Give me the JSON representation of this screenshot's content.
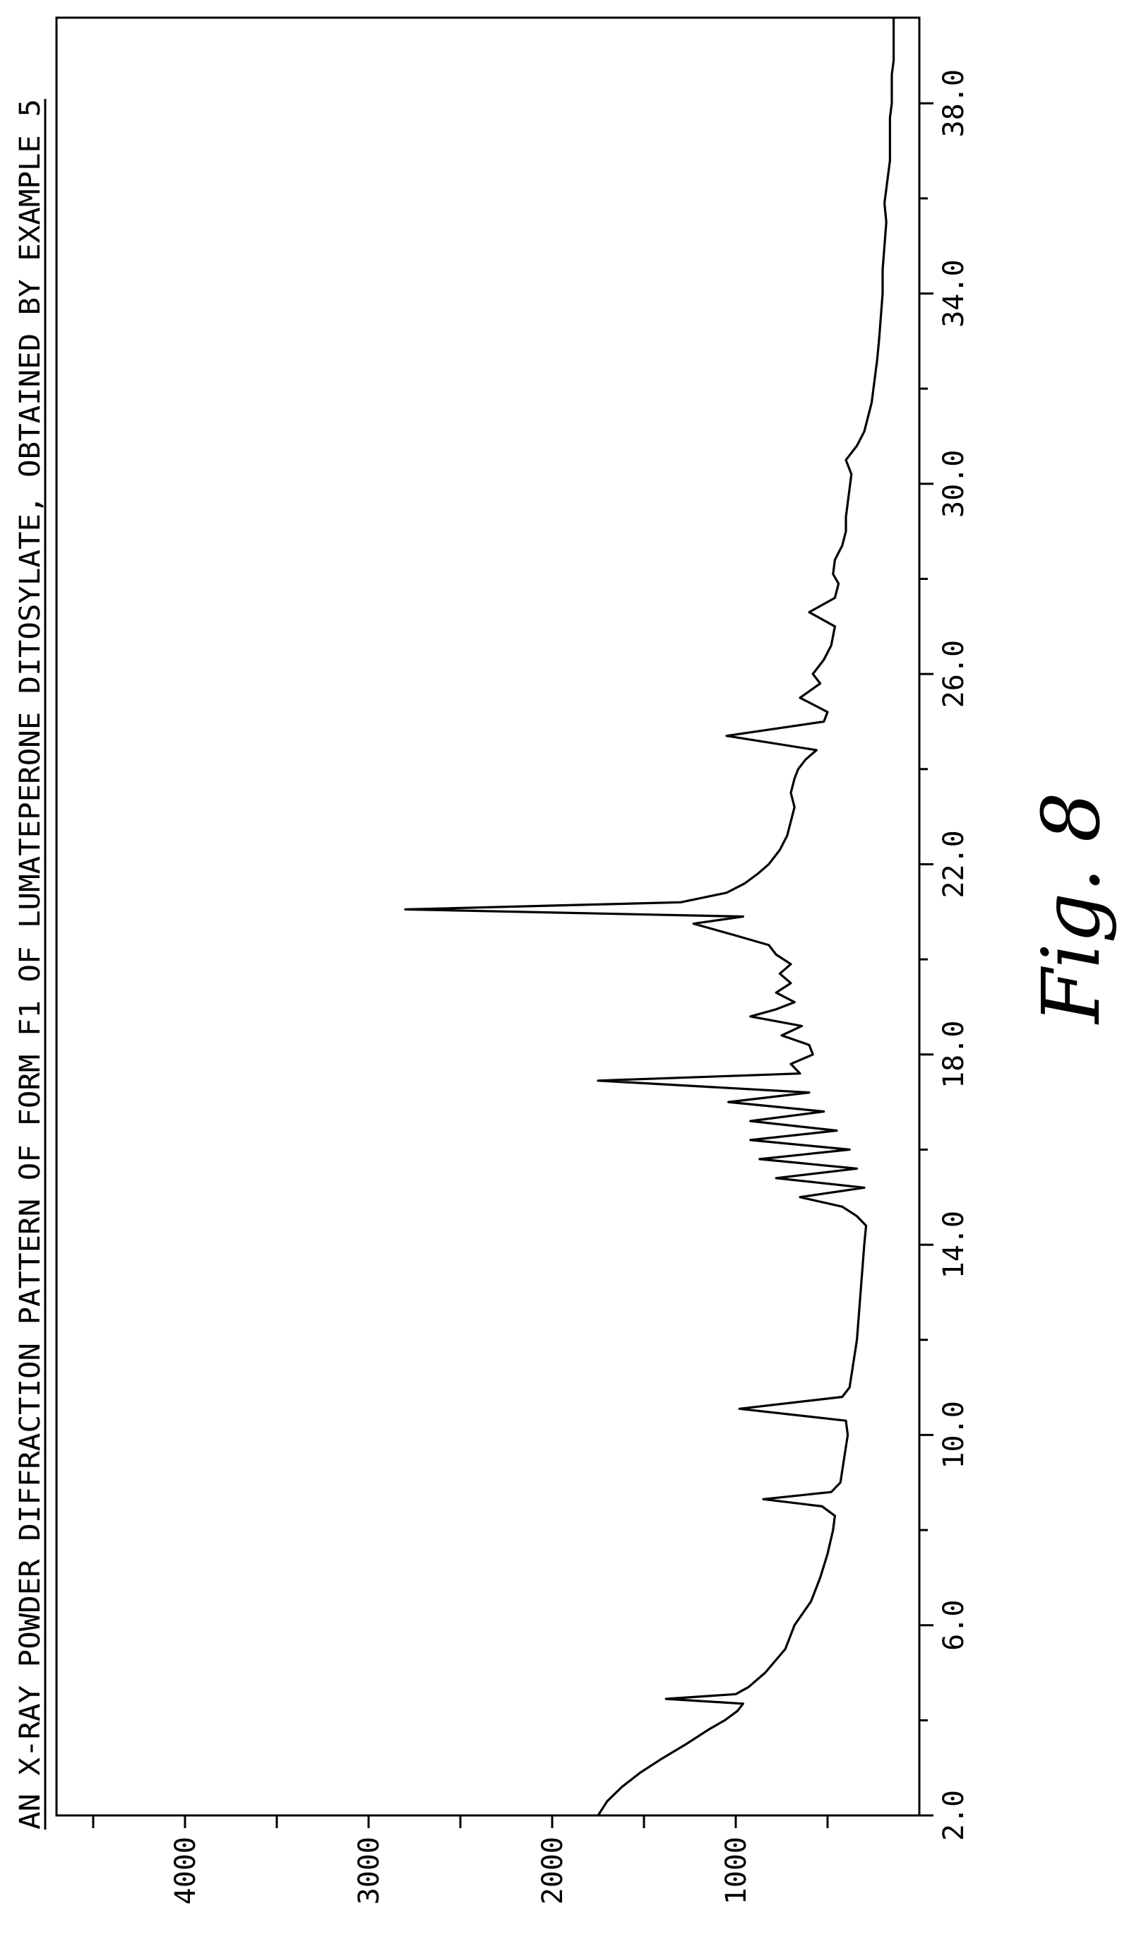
{
  "figure_label": "Fig. 8",
  "chart_data": {
    "type": "line",
    "title": "AN X-RAY POWDER DIFFRACTION PATTERN OF FORM F1 OF LUMATEPERONE DITOSYLATE, OBTAINED BY EXAMPLE 5",
    "xlabel": "",
    "ylabel": "",
    "xlim": [
      2.0,
      39.8
    ],
    "ylim": [
      0,
      4700
    ],
    "x_ticks": [
      "2.0",
      "6.0",
      "10.0",
      "14.0",
      "18.0",
      "22.0",
      "26.0",
      "30.0",
      "34.0",
      "38.0"
    ],
    "y_ticks": [
      "1000",
      "2000",
      "3000",
      "4000"
    ],
    "grid": false,
    "orientation": "rotated 90 degrees counter-clockwise",
    "series": [
      {
        "color": "#000000",
        "x": [
          2.0,
          2.3,
          2.6,
          2.9,
          3.2,
          3.5,
          3.8,
          4.0,
          4.2,
          4.35,
          4.45,
          4.55,
          4.7,
          5.0,
          5.5,
          6.0,
          6.5,
          7.0,
          7.5,
          8.0,
          8.3,
          8.5,
          8.65,
          8.8,
          9.0,
          9.5,
          10.0,
          10.3,
          10.55,
          10.8,
          11.0,
          11.5,
          12.0,
          12.5,
          13.0,
          13.5,
          14.0,
          14.4,
          14.6,
          14.8,
          15.0,
          15.2,
          15.4,
          15.6,
          15.8,
          16.0,
          16.2,
          16.4,
          16.6,
          16.8,
          17.0,
          17.2,
          17.45,
          17.6,
          17.8,
          18.0,
          18.2,
          18.4,
          18.6,
          18.8,
          18.95,
          19.1,
          19.3,
          19.5,
          19.7,
          19.9,
          20.1,
          20.3,
          20.5,
          20.75,
          20.9,
          21.05,
          21.2,
          21.4,
          21.6,
          21.8,
          22.0,
          22.3,
          22.6,
          22.9,
          23.2,
          23.5,
          23.8,
          24.0,
          24.2,
          24.4,
          24.7,
          25.0,
          25.2,
          25.5,
          25.8,
          26.0,
          26.3,
          26.6,
          27.0,
          27.3,
          27.6,
          27.9,
          28.1,
          28.4,
          28.7,
          29.0,
          29.3,
          29.6,
          29.9,
          30.2,
          30.5,
          30.8,
          31.1,
          31.4,
          31.7,
          32.0,
          32.3,
          32.6,
          33.0,
          33.5,
          34.0,
          34.5,
          35.0,
          35.5,
          35.9,
          36.2,
          36.5,
          36.8,
          37.1,
          37.4,
          37.7,
          38.0,
          38.3,
          38.6,
          38.9,
          39.2,
          39.5,
          39.8
        ],
        "y": [
          1750,
          1700,
          1620,
          1520,
          1400,
          1270,
          1150,
          1060,
          990,
          960,
          1380,
          1000,
          930,
          840,
          730,
          680,
          590,
          540,
          500,
          470,
          460,
          530,
          850,
          480,
          430,
          410,
          390,
          400,
          980,
          420,
          380,
          360,
          340,
          330,
          320,
          310,
          300,
          290,
          340,
          420,
          650,
          300,
          780,
          340,
          870,
          380,
          920,
          450,
          920,
          520,
          1040,
          600,
          1750,
          650,
          700,
          580,
          600,
          750,
          640,
          920,
          780,
          680,
          780,
          700,
          760,
          700,
          780,
          820,
          1000,
          1230,
          960,
          2800,
          1300,
          1050,
          950,
          880,
          820,
          760,
          720,
          700,
          680,
          700,
          680,
          660,
          620,
          560,
          1050,
          520,
          500,
          650,
          540,
          580,
          520,
          480,
          460,
          600,
          460,
          440,
          470,
          460,
          420,
          400,
          400,
          390,
          380,
          370,
          400,
          340,
          300,
          280,
          260,
          250,
          240,
          230,
          220,
          210,
          200,
          200,
          190,
          180,
          190,
          180,
          170,
          160,
          160,
          160,
          160,
          150,
          150,
          150,
          140,
          140,
          140,
          140
        ]
      }
    ]
  }
}
